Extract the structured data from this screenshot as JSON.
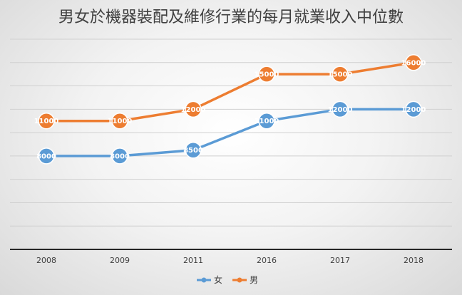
{
  "chart_data": {
    "type": "line",
    "title": "男女於機器裝配及維修行業的每月就業收入中位數",
    "categories": [
      "2008",
      "2009",
      "2011",
      "2016",
      "2017",
      "2018"
    ],
    "series": [
      {
        "name": "女",
        "color": "#5b9bd5",
        "values": [
          8000,
          8000,
          8500,
          11000,
          12000,
          12000
        ]
      },
      {
        "name": "男",
        "color": "#ed7d31",
        "values": [
          11000,
          11000,
          12000,
          15000,
          15000,
          16000
        ]
      }
    ],
    "ylim": [
      0,
      18000
    ],
    "ytick_step": 2000,
    "grid": true,
    "legend": "bottom-center",
    "xlabel": "",
    "ylabel": ""
  }
}
